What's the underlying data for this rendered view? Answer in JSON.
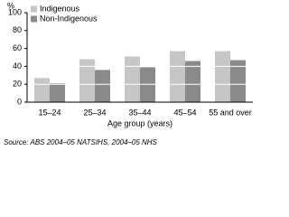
{
  "chart_data": {
    "type": "bar",
    "y_label": "%",
    "x_label": "Age group (years)",
    "source": "Source: ABS 2004–05 NATSIHS, 2004–05 NHS",
    "categories": [
      "15–24",
      "25–34",
      "35–44",
      "45–54",
      "55 and over"
    ],
    "series": [
      {
        "name": "Indigenous",
        "color": "#c6c6c6",
        "values": [
          27,
          48,
          51,
          57,
          57
        ]
      },
      {
        "name": "Non-Indigenous",
        "color": "#8a8a8a",
        "values": [
          21,
          36,
          39,
          46,
          47
        ]
      }
    ],
    "ylim": [
      0,
      100
    ],
    "yticks": [
      0,
      20,
      40,
      60,
      80,
      100
    ],
    "grid": true
  }
}
